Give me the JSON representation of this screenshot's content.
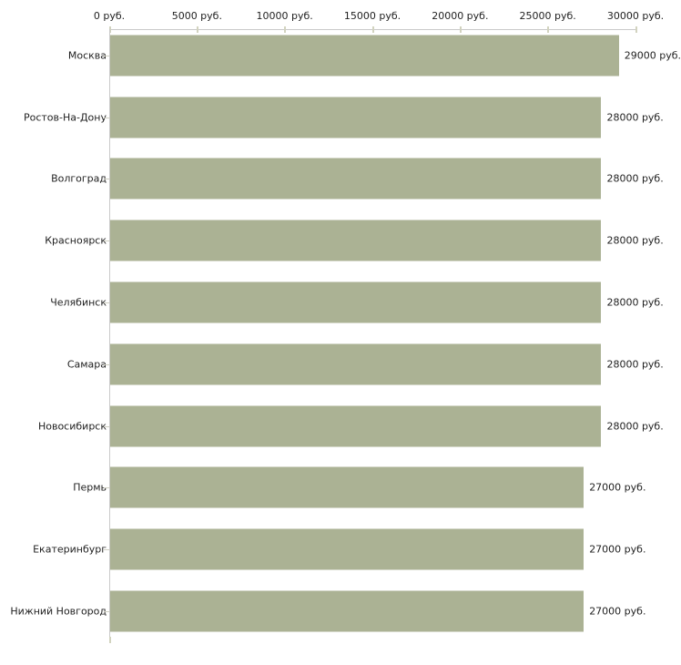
{
  "chart_data": {
    "type": "bar",
    "orientation": "horizontal",
    "title": "",
    "xlabel": "",
    "ylabel": "",
    "unit": "руб.",
    "categories": [
      "Москва",
      "Ростов-На-Дону",
      "Волгоград",
      "Красноярск",
      "Челябинск",
      "Самара",
      "Новосибирск",
      "Пермь",
      "Екатеринбург",
      "Нижний Новгород"
    ],
    "values": [
      29000,
      28000,
      28000,
      28000,
      28000,
      28000,
      28000,
      27000,
      27000,
      27000
    ],
    "bar_labels": [
      "29000 руб.",
      "28000 руб.",
      "28000 руб.",
      "28000 руб.",
      "28000 руб.",
      "28000 руб.",
      "28000 руб.",
      "27000 руб.",
      "27000 руб.",
      "27000 руб."
    ],
    "x_tick_labels": [
      "0 руб.",
      "5000 руб.",
      "10000 руб.",
      "15000 руб.",
      "20000 руб.",
      "25000 руб.",
      "30000 руб."
    ],
    "x_tick_step": 5000,
    "xlim": [
      0,
      30000
    ],
    "grid": "off",
    "legend": "none",
    "axis_position": "top",
    "colors": {
      "bar": "#abb294",
      "axis_line": "#c9c9c9",
      "tick_mark": "#d2d3bf",
      "text": "#1f1f1f",
      "background": "#ffffff"
    }
  }
}
